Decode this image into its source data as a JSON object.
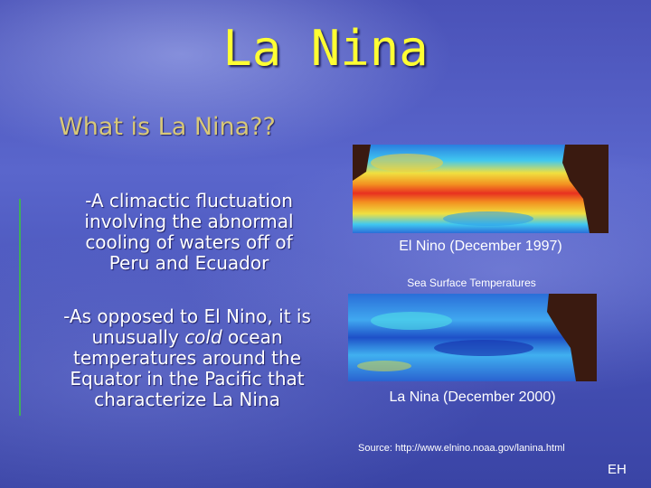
{
  "slide": {
    "title": "La Nina",
    "subtitle": "What is La Nina??",
    "paragraph_1": "-A climactic fluctuation involving the abnormal cooling of waters off of Peru and Ecuador",
    "paragraph_2": [
      "-As opposed to El Nino, it is unusually ",
      "cold",
      " ocean temperatures around the Equator in the Pacific that characterize La Nina"
    ],
    "image_1_caption": "El Nino (December 1997)",
    "image_label": "Sea Surface Temperatures",
    "image_2_caption": "La Nina (December 2000)",
    "source": "Source: http://www.elnino.noaa.gov/lanina.html",
    "footer": "EH"
  }
}
